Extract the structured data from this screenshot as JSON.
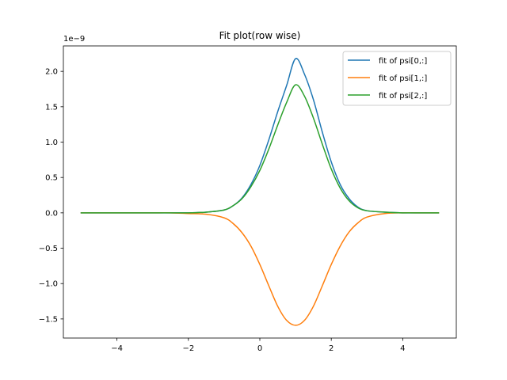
{
  "chart_data": {
    "type": "line",
    "title": "Fit plot(row wise)",
    "xlabel": "",
    "ylabel": "",
    "y_offset_label": "1e−9",
    "xlim": [
      -5.5,
      5.5
    ],
    "ylim": [
      -1.77,
      2.36
    ],
    "grid": false,
    "legend_position": "top-right",
    "x_ticks": [
      -4,
      -2,
      0,
      2,
      4
    ],
    "x_tick_labels": [
      "−4",
      "−2",
      "0",
      "2",
      "4"
    ],
    "y_ticks": [
      -1.5,
      -1.0,
      -0.5,
      0.0,
      0.5,
      1.0,
      1.5,
      2.0
    ],
    "y_tick_labels": [
      "−1.5",
      "−1.0",
      "−0.5",
      "0.0",
      "0.5",
      "1.0",
      "1.5",
      "2.0"
    ],
    "x": [
      -5.0,
      -4.5,
      -4.0,
      -3.5,
      -3.0,
      -2.5,
      -2.0,
      -1.5,
      -1.0,
      -0.75,
      -0.5,
      -0.25,
      0.0,
      0.25,
      0.5,
      0.75,
      1.0,
      1.25,
      1.5,
      1.75,
      2.0,
      2.25,
      2.5,
      2.75,
      3.0,
      3.5,
      4.0,
      4.5,
      5.0
    ],
    "series": [
      {
        "name": "fit of psi[0,:]",
        "color": "#1f77b4",
        "values": [
          0.0,
          0.0,
          0.0,
          0.0,
          0.0,
          0.0,
          0.0,
          0.01,
          0.04,
          0.1,
          0.21,
          0.4,
          0.67,
          1.03,
          1.43,
          1.8,
          2.18,
          1.96,
          1.6,
          1.14,
          0.72,
          0.4,
          0.2,
          0.08,
          0.03,
          0.01,
          0.0,
          0.0,
          0.0
        ]
      },
      {
        "name": "fit of psi[1,:]",
        "color": "#ff7f0e",
        "values": [
          0.0,
          0.0,
          0.0,
          0.0,
          0.0,
          0.0,
          -0.01,
          -0.02,
          -0.07,
          -0.15,
          -0.28,
          -0.47,
          -0.73,
          -1.03,
          -1.32,
          -1.52,
          -1.59,
          -1.52,
          -1.32,
          -1.03,
          -0.73,
          -0.47,
          -0.27,
          -0.14,
          -0.06,
          -0.01,
          0.0,
          0.0,
          0.0
        ]
      },
      {
        "name": "fit of psi[2,:]",
        "color": "#2ca02c",
        "values": [
          0.0,
          0.0,
          0.0,
          0.0,
          0.0,
          0.0,
          0.0,
          0.01,
          0.04,
          0.1,
          0.2,
          0.37,
          0.6,
          0.9,
          1.24,
          1.56,
          1.81,
          1.65,
          1.34,
          0.97,
          0.62,
          0.35,
          0.17,
          0.07,
          0.03,
          0.01,
          0.0,
          0.0,
          0.0
        ]
      }
    ]
  }
}
